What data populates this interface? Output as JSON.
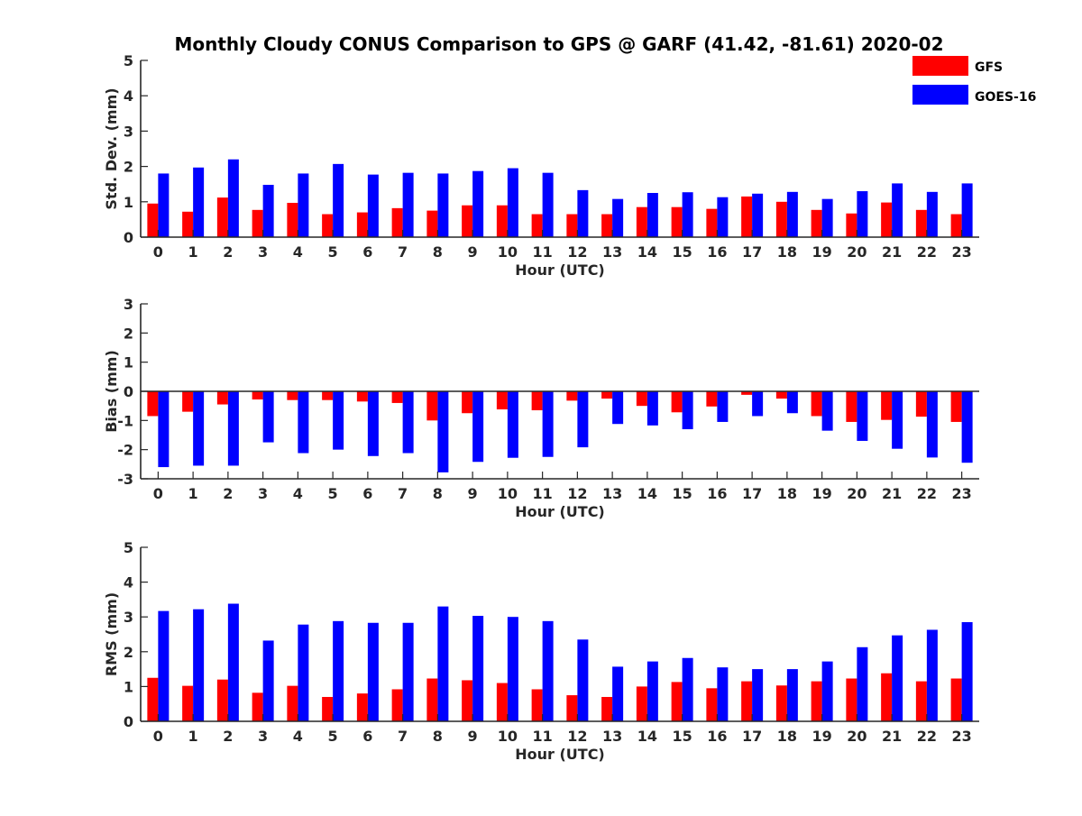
{
  "chart_data": {
    "type": "bar",
    "title": "Monthly Cloudy CONUS Comparison to GPS @ GARF (41.42, -81.61) 2020-02",
    "legend": {
      "placement": "top-right",
      "entries": [
        {
          "name": "GFS",
          "color": "#ff0000"
        },
        {
          "name": "GOES-16",
          "color": "#0000ff"
        }
      ]
    },
    "categories": [
      "0",
      "1",
      "2",
      "3",
      "4",
      "5",
      "6",
      "7",
      "8",
      "9",
      "10",
      "11",
      "12",
      "13",
      "14",
      "15",
      "16",
      "17",
      "18",
      "19",
      "20",
      "21",
      "22",
      "23"
    ],
    "grid": false,
    "panels": [
      {
        "ylabel": "Std. Dev. (mm)",
        "xlabel": "Hour (UTC)",
        "ylim": [
          0,
          5
        ],
        "yticks": [
          "0",
          "1",
          "2",
          "3",
          "4",
          "5"
        ],
        "series": [
          {
            "name": "GFS",
            "color": "#ff0000",
            "values": [
              0.95,
              0.72,
              1.12,
              0.77,
              0.97,
              0.65,
              0.7,
              0.82,
              0.75,
              0.9,
              0.9,
              0.65,
              0.65,
              0.65,
              0.85,
              0.85,
              0.8,
              1.15,
              1.0,
              0.77,
              0.67,
              0.98,
              0.77,
              0.65
            ]
          },
          {
            "name": "GOES-16",
            "color": "#0000ff",
            "values": [
              1.8,
              1.97,
              2.2,
              1.48,
              1.8,
              2.07,
              1.77,
              1.82,
              1.8,
              1.87,
              1.95,
              1.82,
              1.33,
              1.08,
              1.25,
              1.27,
              1.13,
              1.23,
              1.28,
              1.08,
              1.3,
              1.52,
              1.28,
              1.52
            ]
          }
        ]
      },
      {
        "ylabel": "Bias (mm)",
        "xlabel": "Hour (UTC)",
        "ylim": [
          -3,
          3
        ],
        "yticks": [
          "-3",
          "-2",
          "-1",
          "0",
          "1",
          "2",
          "3"
        ],
        "series": [
          {
            "name": "GFS",
            "color": "#ff0000",
            "values": [
              -0.85,
              -0.7,
              -0.45,
              -0.28,
              -0.3,
              -0.3,
              -0.35,
              -0.4,
              -1.0,
              -0.75,
              -0.62,
              -0.65,
              -0.32,
              -0.25,
              -0.5,
              -0.72,
              -0.52,
              -0.12,
              -0.25,
              -0.85,
              -1.05,
              -0.98,
              -0.87,
              -1.05
            ]
          },
          {
            "name": "GOES-16",
            "color": "#0000ff",
            "values": [
              -2.6,
              -2.55,
              -2.55,
              -1.75,
              -2.12,
              -2.0,
              -2.22,
              -2.12,
              -2.78,
              -2.42,
              -2.28,
              -2.25,
              -1.92,
              -1.12,
              -1.17,
              -1.3,
              -1.05,
              -0.85,
              -0.75,
              -1.35,
              -1.7,
              -1.97,
              -2.27,
              -2.45
            ]
          }
        ]
      },
      {
        "ylabel": "RMS (mm)",
        "xlabel": "Hour (UTC)",
        "ylim": [
          0,
          5
        ],
        "yticks": [
          "0",
          "1",
          "2",
          "3",
          "4",
          "5"
        ],
        "series": [
          {
            "name": "GFS",
            "color": "#ff0000",
            "values": [
              1.25,
              1.02,
              1.2,
              0.82,
              1.02,
              0.7,
              0.8,
              0.92,
              1.23,
              1.18,
              1.1,
              0.92,
              0.75,
              0.7,
              1.0,
              1.13,
              0.95,
              1.15,
              1.03,
              1.15,
              1.23,
              1.38,
              1.15,
              1.23
            ]
          },
          {
            "name": "GOES-16",
            "color": "#0000ff",
            "values": [
              3.17,
              3.22,
              3.38,
              2.32,
              2.78,
              2.88,
              2.83,
              2.83,
              3.3,
              3.03,
              3.0,
              2.88,
              2.35,
              1.57,
              1.72,
              1.82,
              1.55,
              1.5,
              1.5,
              1.72,
              2.13,
              2.47,
              2.63,
              2.85
            ]
          }
        ]
      }
    ]
  }
}
